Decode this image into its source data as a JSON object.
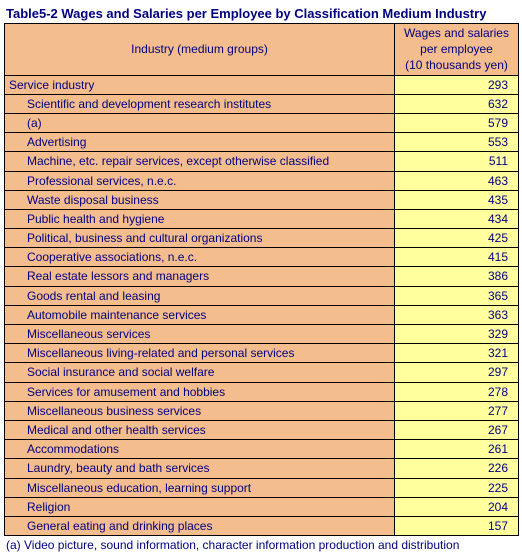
{
  "title": "Table5-2    Wages and Salaries per Employee by Classification Medium Industry",
  "columns": {
    "industry": "Industry (medium groups)",
    "wages": "Wages and salaries\nper employee\n(10 thousands yen)"
  },
  "rows": [
    {
      "name": "Service industry",
      "value": "293",
      "indent": false
    },
    {
      "name": "Scientific and development research institutes",
      "value": "632",
      "indent": true
    },
    {
      "name": "(a)",
      "value": "579",
      "indent": true
    },
    {
      "name": "Advertising",
      "value": "553",
      "indent": true
    },
    {
      "name": "Machine, etc. repair services, except otherwise classified",
      "value": "511",
      "indent": true
    },
    {
      "name": "Professional services, n.e.c.",
      "value": "463",
      "indent": true
    },
    {
      "name": "Waste disposal business",
      "value": "435",
      "indent": true
    },
    {
      "name": "Public health and hygiene",
      "value": "434",
      "indent": true
    },
    {
      "name": "Political, business and cultural organizations",
      "value": "425",
      "indent": true
    },
    {
      "name": "Cooperative associations, n.e.c.",
      "value": "415",
      "indent": true
    },
    {
      "name": "Real estate lessors and managers",
      "value": "386",
      "indent": true
    },
    {
      "name": "Goods rental and leasing",
      "value": "365",
      "indent": true
    },
    {
      "name": "Automobile maintenance services",
      "value": "363",
      "indent": true
    },
    {
      "name": "Miscellaneous services",
      "value": "329",
      "indent": true
    },
    {
      "name": "Miscellaneous living-related and personal services",
      "value": "321",
      "indent": true
    },
    {
      "name": "Social insurance and social welfare",
      "value": "297",
      "indent": true
    },
    {
      "name": "Services for amusement and hobbies",
      "value": "278",
      "indent": true
    },
    {
      "name": "Miscellaneous business services",
      "value": "277",
      "indent": true
    },
    {
      "name": "Medical and other health services",
      "value": "267",
      "indent": true
    },
    {
      "name": "Accommodations",
      "value": "261",
      "indent": true
    },
    {
      "name": "Laundry, beauty and bath services",
      "value": "226",
      "indent": true
    },
    {
      "name": "Miscellaneous education, learning support",
      "value": "225",
      "indent": true
    },
    {
      "name": "Religion",
      "value": "204",
      "indent": true
    },
    {
      "name": "General eating and drinking places",
      "value": "157",
      "indent": true
    }
  ],
  "footnote": "(a) Video picture, sound information, character information production and distribution"
}
